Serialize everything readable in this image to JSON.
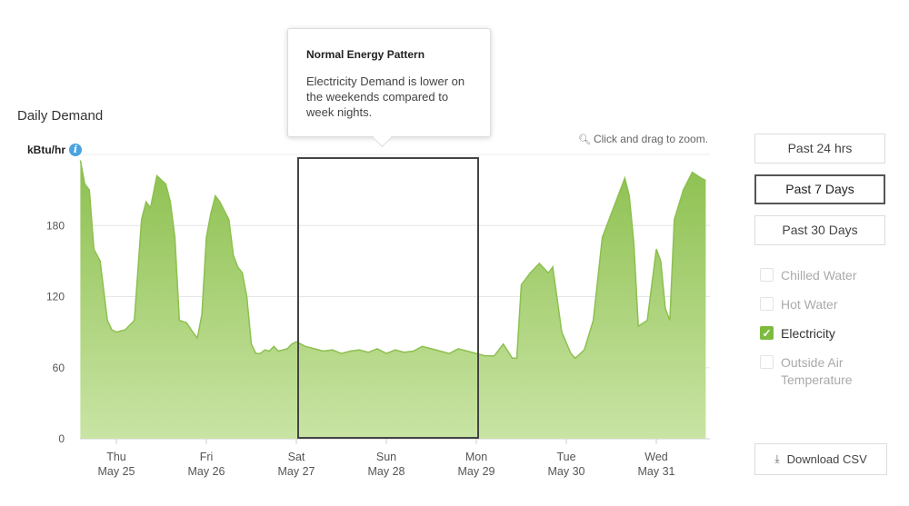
{
  "chart_data": {
    "type": "area",
    "title": "Daily Demand",
    "ylabel": "kBtu/hr",
    "ylim": [
      0,
      240
    ],
    "yticks": [
      0,
      60,
      120,
      180
    ],
    "x_ticks": [
      {
        "day": "Thu",
        "date": "May 25"
      },
      {
        "day": "Fri",
        "date": "May 26"
      },
      {
        "day": "Sat",
        "date": "May 27"
      },
      {
        "day": "Sun",
        "date": "May 28"
      },
      {
        "day": "Mon",
        "date": "May 29"
      },
      {
        "day": "Tue",
        "date": "May 30"
      },
      {
        "day": "Wed",
        "date": "May 31"
      }
    ],
    "series": [
      {
        "color": "#8dc04f",
        "x_days": [
          -0.4,
          -0.35,
          -0.3,
          -0.25,
          -0.18,
          -0.1,
          -0.05,
          0.0,
          0.1,
          0.2,
          0.28,
          0.33,
          0.38,
          0.45,
          0.55,
          0.6,
          0.65,
          0.7,
          0.78,
          0.85,
          0.9,
          0.95,
          1.0,
          1.05,
          1.1,
          1.15,
          1.25,
          1.3,
          1.35,
          1.4,
          1.45,
          1.5,
          1.55,
          1.6,
          1.65,
          1.7,
          1.75,
          1.8,
          1.85,
          1.9,
          1.95,
          2.0,
          2.1,
          2.2,
          2.3,
          2.4,
          2.5,
          2.6,
          2.7,
          2.8,
          2.9,
          3.0,
          3.1,
          3.2,
          3.3,
          3.4,
          3.5,
          3.6,
          3.7,
          3.8,
          3.9,
          4.0,
          4.1,
          4.2,
          4.3,
          4.4,
          4.45,
          4.5,
          4.6,
          4.7,
          4.8,
          4.85,
          4.95,
          5.05,
          5.1,
          5.2,
          5.3,
          5.4,
          5.5,
          5.6,
          5.65,
          5.7,
          5.75,
          5.8,
          5.9,
          6.0,
          6.05,
          6.1,
          6.15,
          6.2,
          6.3,
          6.4,
          6.5,
          6.55
        ],
        "values": [
          235,
          215,
          210,
          160,
          150,
          100,
          92,
          90,
          92,
          100,
          185,
          200,
          195,
          222,
          215,
          200,
          170,
          100,
          98,
          90,
          85,
          105,
          170,
          190,
          205,
          200,
          185,
          155,
          145,
          140,
          120,
          80,
          72,
          72,
          75,
          74,
          78,
          74,
          75,
          76,
          80,
          82,
          78,
          76,
          74,
          75,
          72,
          74,
          75,
          73,
          76,
          72,
          75,
          73,
          74,
          78,
          76,
          74,
          72,
          76,
          74,
          72,
          70,
          70,
          80,
          68,
          68,
          130,
          140,
          148,
          140,
          145,
          90,
          72,
          68,
          75,
          100,
          170,
          190,
          210,
          220,
          205,
          165,
          95,
          100,
          160,
          150,
          110,
          100,
          185,
          210,
          225,
          220,
          218
        ]
      }
    ],
    "annotation": {
      "title": "Normal Energy Pattern",
      "text": "Electricity Demand is lower on the weekends compared to week nights."
    }
  },
  "header": {
    "title": "Daily Demand",
    "unit": "kBtu/hr",
    "info_icon": "info-icon",
    "zoom_hint": "Click and drag to zoom.",
    "zoom_icon": "magnifier-icon"
  },
  "tooltip": {
    "title": "Normal Energy Pattern",
    "body": "Electricity Demand is lower on the weekends compared to week nights."
  },
  "range_buttons": [
    {
      "label": "Past 24 hrs",
      "active": false
    },
    {
      "label": "Past 7 Days",
      "active": true
    },
    {
      "label": "Past 30 Days",
      "active": false
    }
  ],
  "filters": [
    {
      "label": "Chilled Water",
      "checked": false
    },
    {
      "label": "Hot Water",
      "checked": false
    },
    {
      "label": "Electricity",
      "checked": true
    },
    {
      "label": "Outside Air Temperature",
      "checked": false
    }
  ],
  "download": {
    "label": "Download CSV",
    "icon": "download-icon"
  },
  "colors": {
    "accent": "#7dbb3f",
    "area_top": "#8dc04f",
    "area_bottom": "#c9e4a4",
    "highlight_box": "#444444",
    "info": "#4aa3df"
  }
}
